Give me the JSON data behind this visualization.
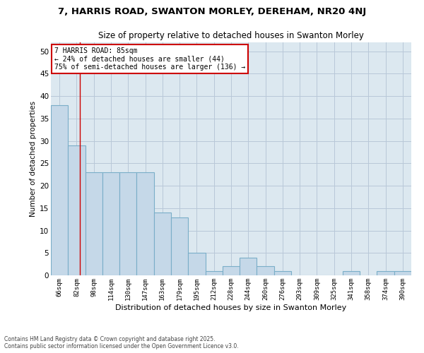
{
  "title1": "7, HARRIS ROAD, SWANTON MORLEY, DEREHAM, NR20 4NJ",
  "title2": "Size of property relative to detached houses in Swanton Morley",
  "xlabel": "Distribution of detached houses by size in Swanton Morley",
  "ylabel": "Number of detached properties",
  "categories": [
    "66sqm",
    "82sqm",
    "98sqm",
    "114sqm",
    "130sqm",
    "147sqm",
    "163sqm",
    "179sqm",
    "195sqm",
    "212sqm",
    "228sqm",
    "244sqm",
    "260sqm",
    "276sqm",
    "293sqm",
    "309sqm",
    "325sqm",
    "341sqm",
    "358sqm",
    "374sqm",
    "390sqm"
  ],
  "values": [
    38,
    29,
    23,
    23,
    23,
    23,
    14,
    13,
    5,
    1,
    2,
    4,
    2,
    1,
    0,
    0,
    0,
    1,
    0,
    1,
    1
  ],
  "bar_color": "#c5d8e8",
  "bar_edge_color": "#7aaec8",
  "bar_linewidth": 0.8,
  "grid_color": "#b8c8d8",
  "bg_color": "#dce8f0",
  "ylim": [
    0,
    52
  ],
  "yticks": [
    0,
    5,
    10,
    15,
    20,
    25,
    30,
    35,
    40,
    45,
    50
  ],
  "vline_x": 1.19,
  "vline_color": "#cc0000",
  "annotation_line1": "7 HARRIS ROAD: 85sqm",
  "annotation_line2": "← 24% of detached houses are smaller (44)",
  "annotation_line3": "75% of semi-detached houses are larger (136) →",
  "annotation_box_color": "#ffffff",
  "annotation_border_color": "#cc0000",
  "footer1": "Contains HM Land Registry data © Crown copyright and database right 2025.",
  "footer2": "Contains public sector information licensed under the Open Government Licence v3.0."
}
